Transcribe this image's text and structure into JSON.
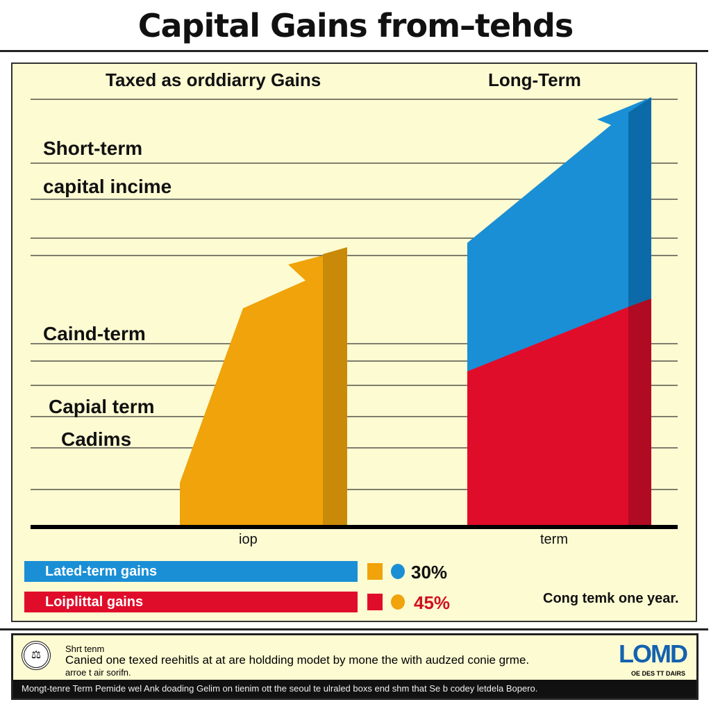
{
  "title": "Capital Gains from–tehds",
  "chart_data": {
    "type": "area",
    "title": "Capital Gains from–tehds",
    "column_headers": [
      "Taxed as orddiarry Gains",
      "Long-Term"
    ],
    "categories": [
      "iop",
      "term"
    ],
    "side_labels": [
      "Short-term",
      "capital incime",
      "Caind-term",
      "Capial term",
      "Cadims"
    ],
    "series": [
      {
        "color": "#f0a30a",
        "start": 10,
        "end": 65
      },
      {
        "color": "#1a8fd6",
        "start": 66,
        "end": 100
      },
      {
        "color": "#e00d2a",
        "start": 36,
        "end": 53
      }
    ],
    "ylim": [
      0,
      100
    ],
    "grid": true,
    "legend": [
      {
        "label": "Lated-term gains",
        "color": "#1a8fd6",
        "swatch": "#f0a30a",
        "dot": "#1a8fd6",
        "value": "30%"
      },
      {
        "label": "Loiplittal gains",
        "color": "#e00d2a",
        "swatch": "#e00d2a",
        "dot": "#f0a30a",
        "value": "45%"
      }
    ],
    "note": "Cong temk one year."
  },
  "footer": {
    "line1": "Shrt tenm",
    "line2": "Canied one texed reehitls at at are holdding modet by mone the with audzed conie grme.",
    "line3": "arroe t air sorifn.",
    "logo": "LOMD",
    "logo_sub": "OE DES TT DAIRS",
    "bar": "Mongt-tenre Term Pemide wel Ank doading Gelim on tienim ott the seoul te ulraled boxs end shm that Se b codey letdela Bopero."
  }
}
